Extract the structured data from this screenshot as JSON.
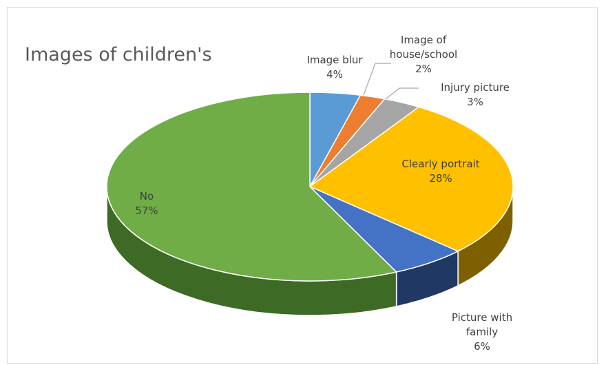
{
  "chart_data": {
    "type": "pie",
    "title": "Images of children's",
    "slices": [
      {
        "label": "Image blur",
        "percent_label": "4%",
        "value": 4,
        "color": "#5b9bd5",
        "side": "#2e5d8c"
      },
      {
        "label": "Image of house/school",
        "label_lines": [
          "Image of",
          "house/school"
        ],
        "percent_label": "2%",
        "value": 2,
        "color": "#ed7d31",
        "side": "#9c4b14"
      },
      {
        "label": "Injury picture",
        "percent_label": "3%",
        "value": 3,
        "color": "#a5a5a5",
        "side": "#6b6b6b"
      },
      {
        "label": "Clearly portrait",
        "percent_label": "28%",
        "value": 28,
        "color": "#ffc000",
        "side": "#7f6000"
      },
      {
        "label": "Picture with family",
        "label_lines": [
          "Picture with",
          "family"
        ],
        "percent_label": "6%",
        "value": 6,
        "color": "#4472c4",
        "side": "#1f3864"
      },
      {
        "label": "No",
        "percent_label": "57%",
        "value": 57,
        "color": "#70ad47",
        "side": "#3d6b25"
      }
    ]
  }
}
